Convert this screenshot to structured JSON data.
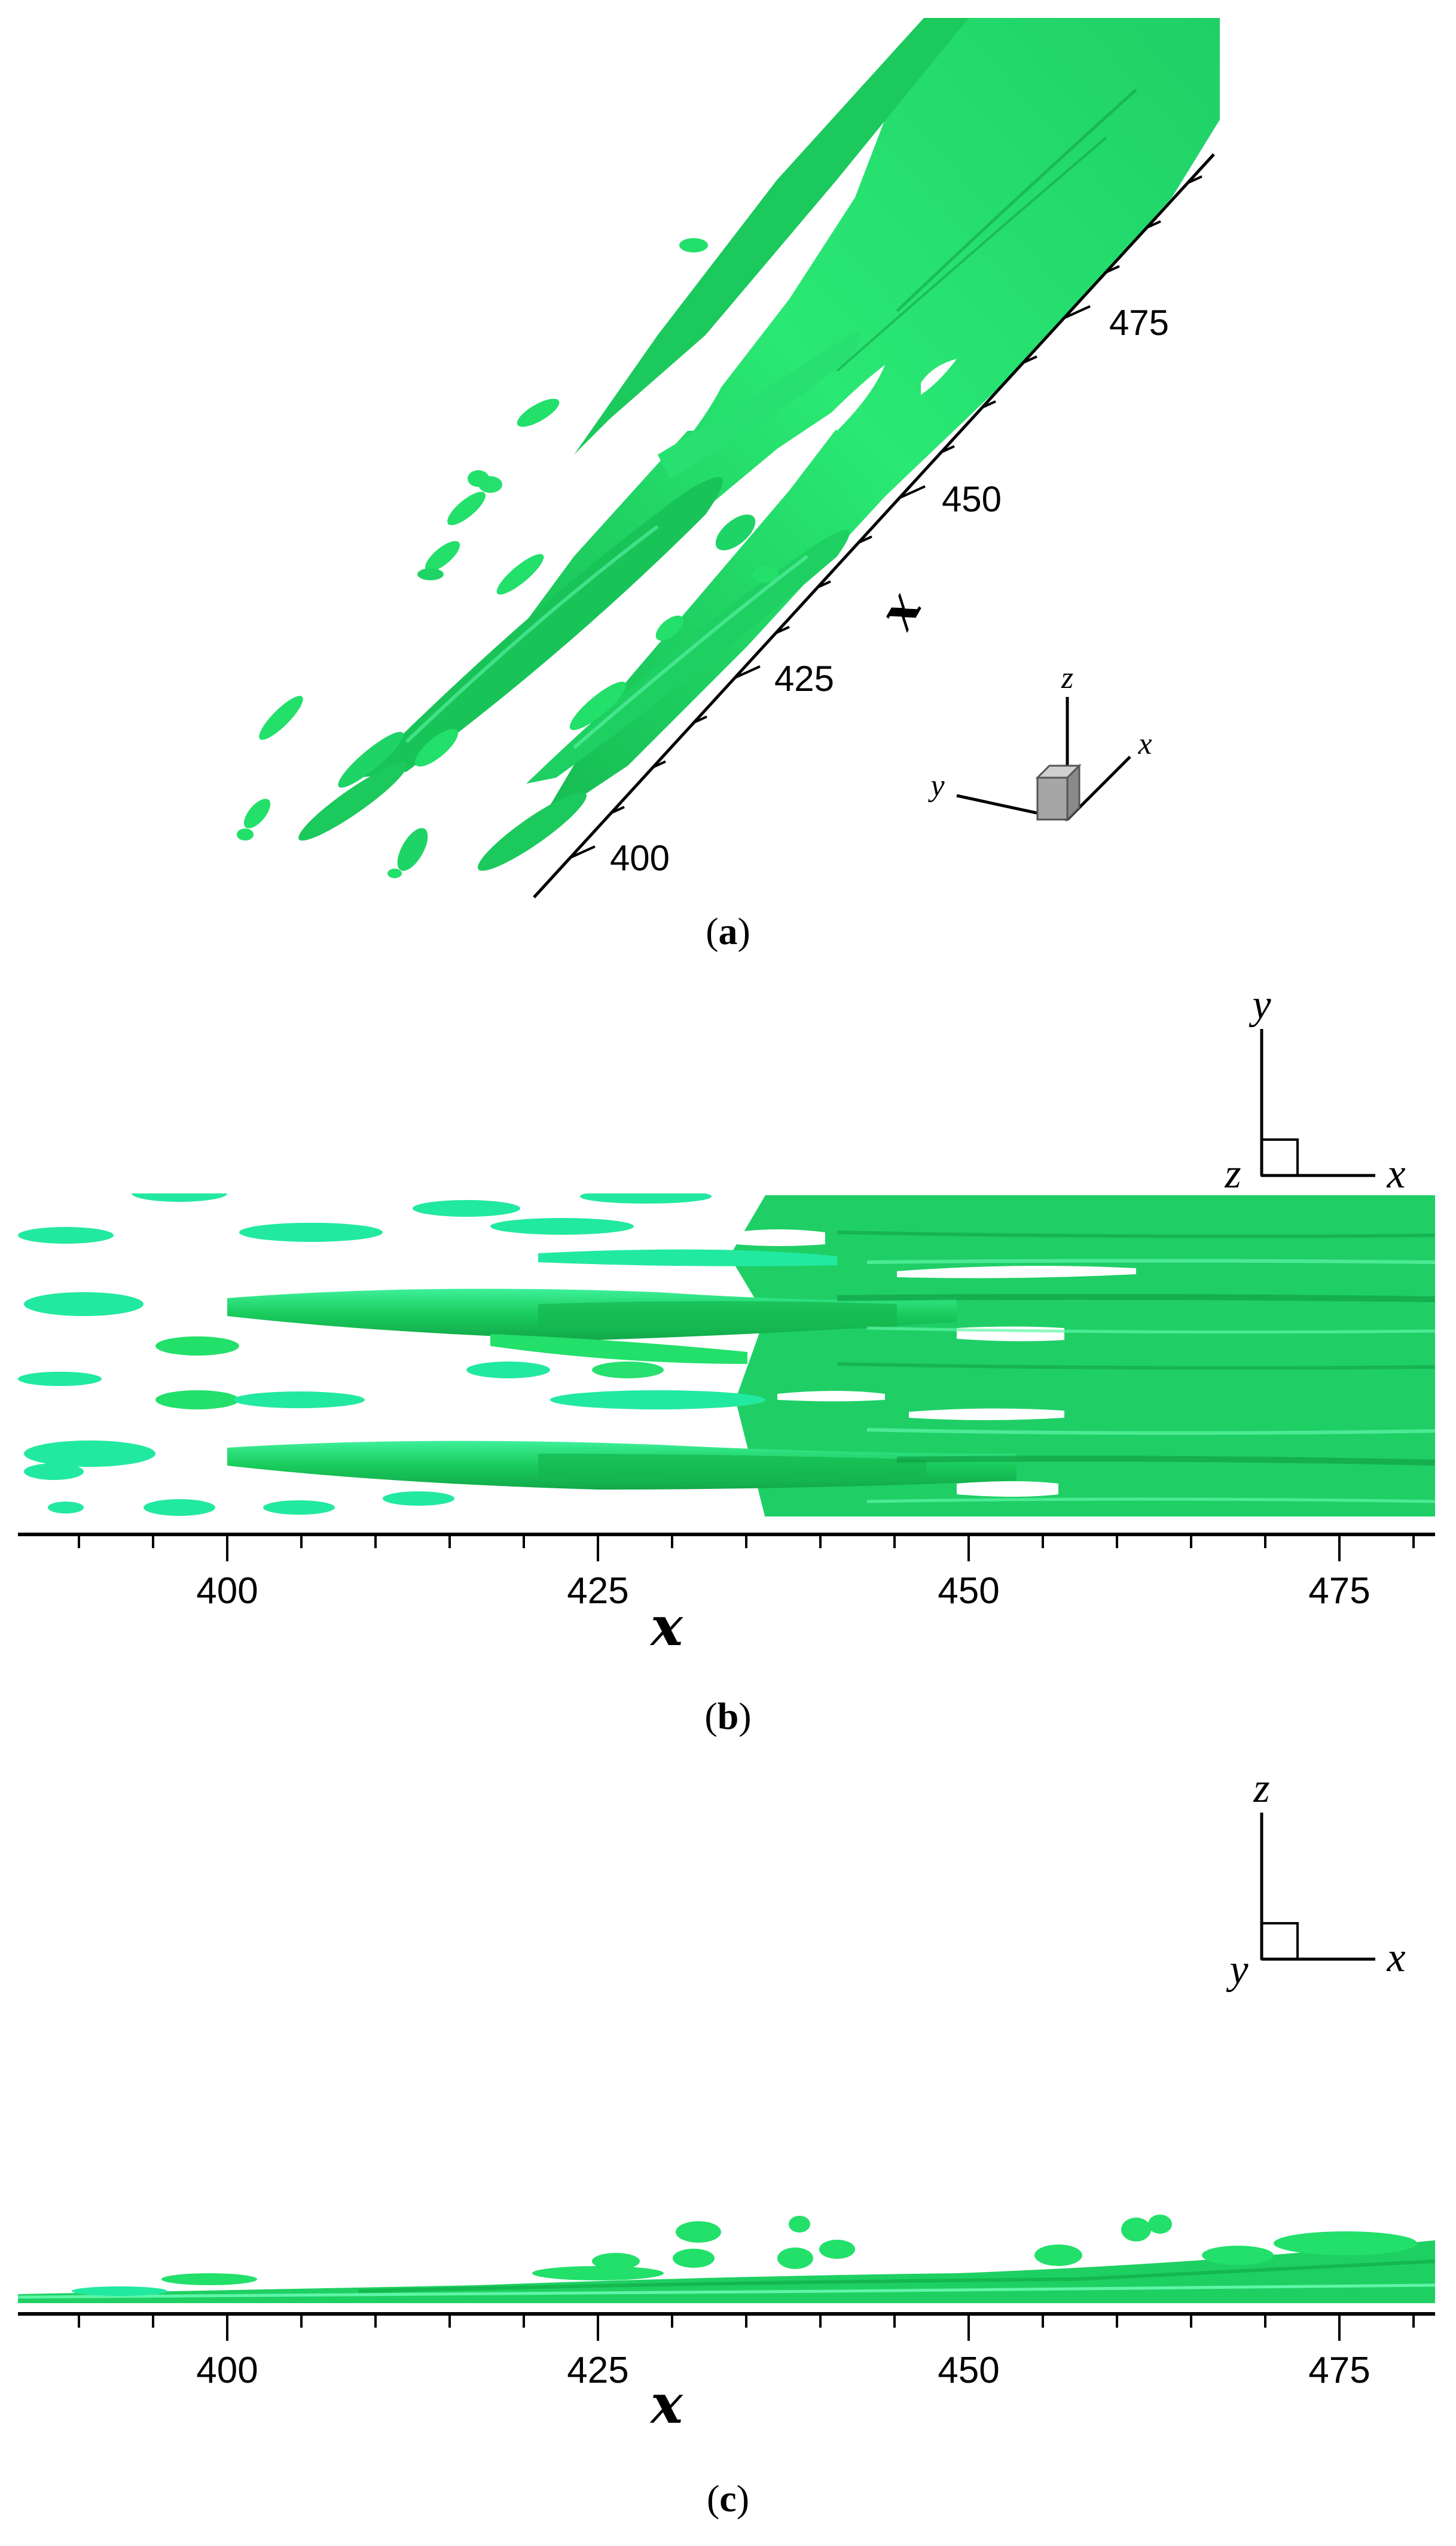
{
  "colors": {
    "isosurface": "#22e06a",
    "isosurface_dark": "#14b84e",
    "isosurface_light": "#5ff5a8",
    "axis": "#000000",
    "cube_fill": "#b0b0b0"
  },
  "panels": [
    {
      "id": "a",
      "caption_letter": "a",
      "view": "3D oblique",
      "axis_title": "x",
      "ticks": [
        "400",
        "425",
        "450",
        "475"
      ],
      "triad": {
        "x": "x",
        "y": "y",
        "z": "z"
      }
    },
    {
      "id": "b",
      "caption_letter": "b",
      "view": "top (x-y plane)",
      "axis_title": "x",
      "ticks": [
        "400",
        "425",
        "450",
        "475"
      ],
      "triad": {
        "h": "x",
        "v": "y",
        "out": "z"
      }
    },
    {
      "id": "c",
      "caption_letter": "c",
      "view": "side (x-z plane)",
      "axis_title": "x",
      "ticks": [
        "400",
        "425",
        "450",
        "475"
      ],
      "triad": {
        "h": "x",
        "v": "z",
        "out": "y"
      }
    }
  ]
}
